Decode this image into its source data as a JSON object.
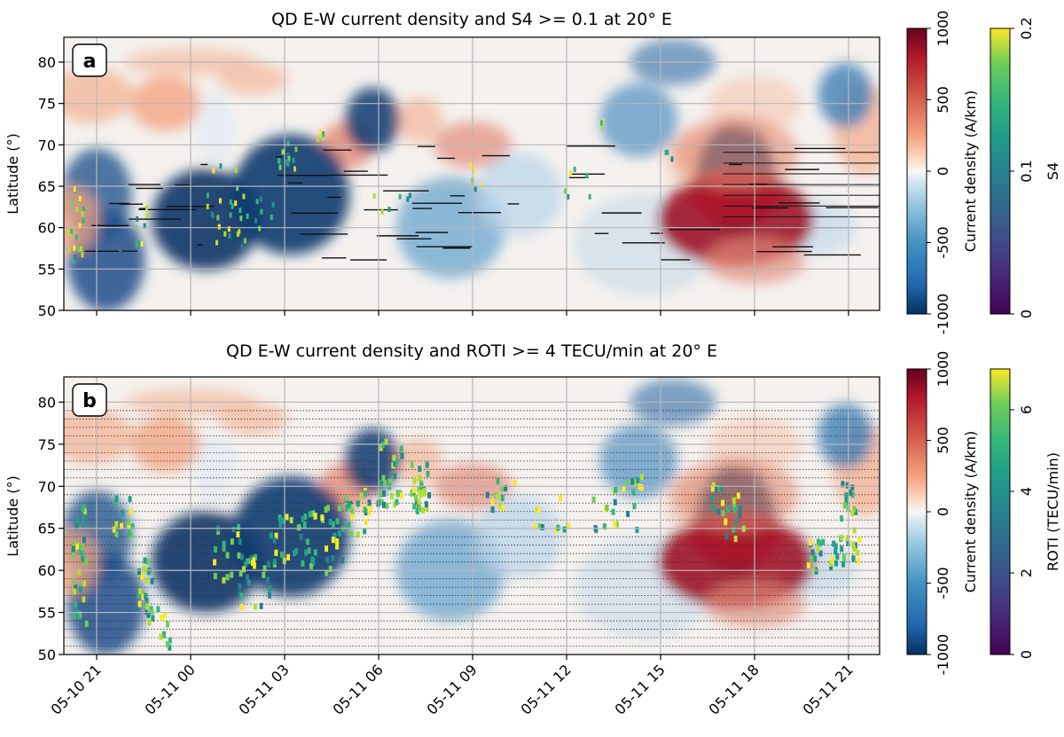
{
  "chart_data": [
    {
      "type": "heatmap",
      "panel_label": "a",
      "title": "QD E-W current density and S4 >= 0.1 at 20° E",
      "xlabel": "",
      "ylabel": "Latitude (°)",
      "ylim": [
        50,
        83
      ],
      "yticks": [
        "50",
        "55",
        "60",
        "65",
        "70",
        "75",
        "80"
      ],
      "xticks": [
        "05-10 21",
        "05-11 00",
        "05-11 03",
        "05-11 06",
        "05-11 09",
        "05-11 12",
        "05-11 15",
        "05-11 18",
        "05-11 21"
      ],
      "grid": true,
      "colorbars": [
        {
          "label": "Current density (A/km)",
          "range": [
            -1000,
            1000
          ],
          "ticks": [
            "-1000",
            "-500",
            "0",
            "500",
            "1000"
          ],
          "colormap": "RdBu_r"
        },
        {
          "label": "S4",
          "range": [
            0,
            0.2
          ],
          "ticks": [
            "0",
            "0.1",
            "0.2"
          ],
          "colormap": "viridis"
        }
      ],
      "overlay": "S4 >= 0.1 cells (green/yellow) over satellite track latitudes (black dashes)"
    },
    {
      "type": "heatmap",
      "panel_label": "b",
      "title": "QD E-W current density and ROTI >= 4 TECU/min at 20° E",
      "xlabel": "",
      "ylabel": "Latitude (°)",
      "ylim": [
        50,
        83
      ],
      "yticks": [
        "50",
        "55",
        "60",
        "65",
        "70",
        "75",
        "80"
      ],
      "xticks": [
        "05-10 21",
        "05-11 00",
        "05-11 03",
        "05-11 06",
        "05-11 09",
        "05-11 12",
        "05-11 15",
        "05-11 18",
        "05-11 21"
      ],
      "grid": true,
      "colorbars": [
        {
          "label": "Current density (A/km)",
          "range": [
            -1000,
            1000
          ],
          "ticks": [
            "-1000",
            "-500",
            "0",
            "500",
            "1000"
          ],
          "colormap": "RdBu_r"
        },
        {
          "label": "ROTI (TECU/min)",
          "range": [
            0,
            7
          ],
          "ticks": [
            "0",
            "2",
            "4",
            "6"
          ],
          "colormap": "viridis"
        }
      ],
      "overlay": "ROTI >= 4 cells (green/yellow) over dotted latitude lines"
    }
  ]
}
